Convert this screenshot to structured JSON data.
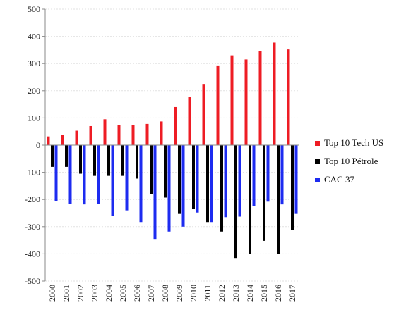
{
  "chart_data": {
    "type": "bar",
    "categories": [
      "2000",
      "2001",
      "2002",
      "2003",
      "2004",
      "2005",
      "2006",
      "2007",
      "2008",
      "2009",
      "2010",
      "2011",
      "2012",
      "2013",
      "2014",
      "2015",
      "2016",
      "2017"
    ],
    "series": [
      {
        "name": "Top 10 Tech US",
        "color": "#ee1c24",
        "values": [
          32,
          38,
          53,
          70,
          95,
          73,
          74,
          78,
          87,
          140,
          177,
          225,
          293,
          330,
          315,
          345,
          377,
          352
        ]
      },
      {
        "name": "Top 10 Pétrole",
        "color": "#000000",
        "values": [
          -80,
          -80,
          -105,
          -113,
          -113,
          -113,
          -123,
          -180,
          -193,
          -253,
          -235,
          -283,
          -318,
          -415,
          -400,
          -352,
          -400,
          -312
        ]
      },
      {
        "name": "CAC 37",
        "color": "#1d2bf0",
        "values": [
          -205,
          -215,
          -218,
          -215,
          -260,
          -240,
          -283,
          -345,
          -318,
          -300,
          -248,
          -283,
          -265,
          -263,
          -223,
          -208,
          -218,
          -253
        ]
      }
    ],
    "yticks": [
      500,
      400,
      300,
      200,
      100,
      0,
      -100,
      -200,
      -300,
      -400,
      -500
    ],
    "ylim": [
      -500,
      500
    ],
    "title": "",
    "xlabel": "",
    "ylabel": "",
    "grid": true,
    "legend_position": "right"
  }
}
